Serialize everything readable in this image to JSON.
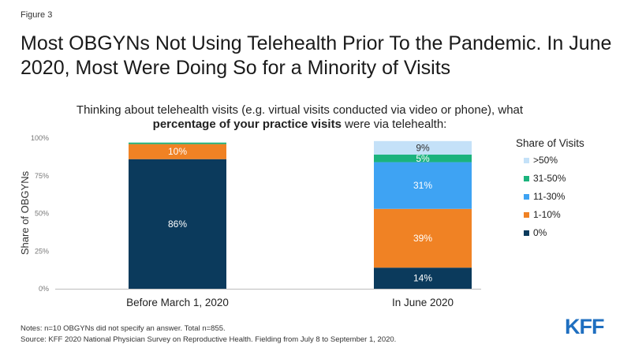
{
  "figure_label": "Figure 3",
  "title": "Most OBGYNs Not Using Telehealth Prior To the Pandemic. In June 2020, Most Were Doing So for a Minority of Visits",
  "subtitle": {
    "line1": "Thinking about telehealth visits (e.g. virtual visits conducted via video or phone), what",
    "line2_bold": "percentage of your practice visits",
    "line2_rest": " were via telehealth:"
  },
  "notes": {
    "line1": "Notes: n=10 OBGYNs did not specify an answer. Total n=855.",
    "line2": "Source: KFF 2020 National Physician Survey on Reproductive Health. Fielding from July 8 to September 1, 2020."
  },
  "logo_text": "KFF",
  "chart_data": {
    "type": "bar",
    "stacked": true,
    "ylabel": "Share of OBGYNs",
    "xlabel": "",
    "ylim": [
      0,
      100
    ],
    "yticks": [
      0,
      25,
      50,
      75,
      100
    ],
    "ytick_labels": [
      "0%",
      "25%",
      "50%",
      "75%",
      "100%"
    ],
    "categories": [
      "Before March 1, 2020",
      "In June 2020"
    ],
    "legend_title": "Share of Visits",
    "legend_position": "right",
    "series": [
      {
        "name": "0%",
        "color": "#0b3a5c",
        "values": [
          86,
          14
        ],
        "labels": [
          "86%",
          "14%"
        ]
      },
      {
        "name": "1-10%",
        "color": "#f08224",
        "values": [
          10,
          39
        ],
        "labels": [
          "10%",
          "39%"
        ]
      },
      {
        "name": "11-30%",
        "color": "#3ea3f3",
        "values": [
          0,
          31
        ],
        "labels": [
          "",
          "31%"
        ]
      },
      {
        "name": "31-50%",
        "color": "#1bb37d",
        "values": [
          1,
          5
        ],
        "labels": [
          "",
          "5%"
        ]
      },
      {
        "name": ">50%",
        "color": "#c4e1f8",
        "values": [
          0,
          9
        ],
        "labels": [
          "",
          "9%"
        ]
      }
    ]
  }
}
